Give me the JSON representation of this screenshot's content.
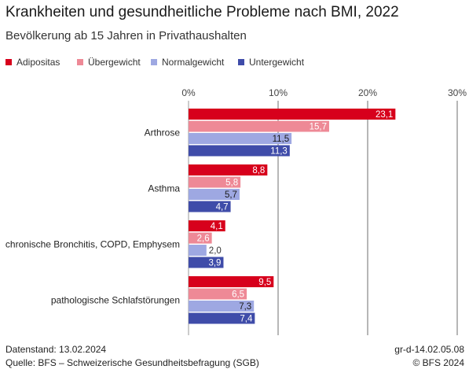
{
  "header": {
    "title": "Krankheiten und gesundheitliche Probleme nach BMI, 2022",
    "subtitle": "Bevölkerung ab 15 Jahren in Privathaushalten"
  },
  "footer": {
    "datenstand": "Datenstand: 13.02.2024",
    "quelle": "Quelle: BFS – Schweizerische Gesundheitsbefragung (SGB)",
    "code": "gr-d-14.02.05.08",
    "copyright": "© BFS 2024"
  },
  "chart_data": {
    "type": "bar",
    "orientation": "horizontal",
    "categories": [
      "Arthrose",
      "Asthma",
      "chronische Bronchitis, COPD, Emphysem",
      "pathologische Schlafstörungen"
    ],
    "series": [
      {
        "name": "Adipositas",
        "color": "#d7001c",
        "values": [
          23.1,
          8.8,
          4.1,
          9.5
        ],
        "labels": [
          "23,1",
          "8,8",
          "4,1",
          "9,5"
        ]
      },
      {
        "name": "Übergewicht",
        "color": "#ee8996",
        "values": [
          15.7,
          5.8,
          2.6,
          6.5
        ],
        "labels": [
          "15,7",
          "5,8",
          "2,6",
          "6,5"
        ]
      },
      {
        "name": "Normalgewicht",
        "color": "#9ea8e2",
        "values": [
          11.5,
          5.7,
          2.0,
          7.3
        ],
        "labels": [
          "11,5",
          "5,7",
          "2,0",
          "7,3"
        ]
      },
      {
        "name": "Untergewicht",
        "color": "#3f4ca9",
        "values": [
          11.3,
          4.7,
          3.9,
          7.4
        ],
        "labels": [
          "11,3",
          "4,7",
          "3,9",
          "7,4"
        ]
      }
    ],
    "x_axis": {
      "ticks": [
        0,
        10,
        20,
        30
      ],
      "tick_labels": [
        "0%",
        "10%",
        "20%",
        "30%"
      ],
      "range": [
        0,
        30
      ]
    },
    "grid": true,
    "legend_position": "top-left"
  }
}
